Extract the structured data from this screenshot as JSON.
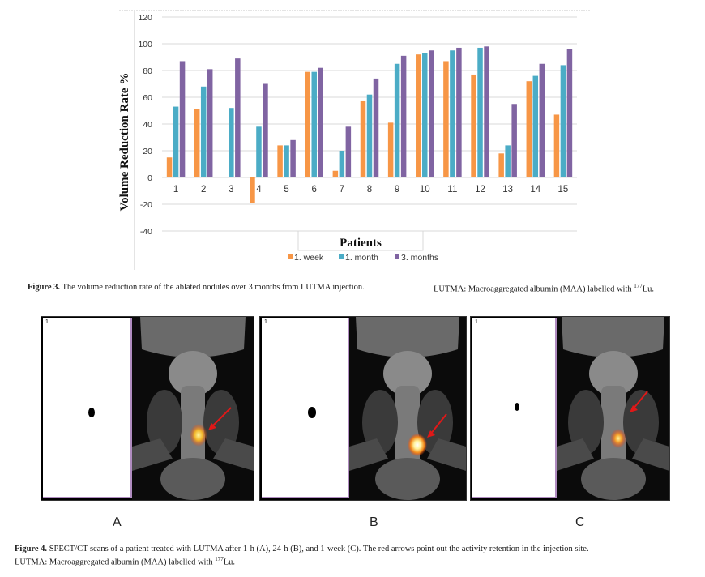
{
  "chart_data": {
    "type": "bar",
    "ylabel": "Volume Reduction Rate %",
    "xlabel": "Patients",
    "categories": [
      "1",
      "2",
      "3",
      "4",
      "5",
      "6",
      "7",
      "8",
      "9",
      "10",
      "11",
      "12",
      "13",
      "14",
      "15"
    ],
    "series": [
      {
        "name": "1. week",
        "color": "#f79646",
        "values": [
          15,
          51,
          0,
          -19,
          24,
          79,
          5,
          57,
          41,
          92,
          87,
          77,
          18,
          72,
          47
        ]
      },
      {
        "name": "1. month",
        "color": "#4bacc6",
        "values": [
          53,
          68,
          52,
          38,
          24,
          79,
          20,
          62,
          85,
          93,
          95,
          97,
          24,
          76,
          84
        ]
      },
      {
        "name": "3. months",
        "color": "#8064a2",
        "values": [
          87,
          81,
          89,
          70,
          28,
          82,
          38,
          74,
          91,
          95,
          97,
          98,
          55,
          85,
          96
        ]
      }
    ],
    "yticks": [
      120,
      100,
      80,
      60,
      40,
      20,
      0,
      -20,
      -40
    ],
    "ylim": [
      -40,
      120
    ],
    "grid": true,
    "legend_position": "bottom"
  },
  "figure3": {
    "label": "Figure 3.",
    "text": "The volume reduction rate of the ablated nodules over 3 months from LUTMA injection.",
    "note": "LUTMA: Macroaggregated albumin (MAA) labelled with",
    "iso_sup": "177",
    "iso": "Lu."
  },
  "figure4": {
    "panels": [
      {
        "letter": "A",
        "num": "1"
      },
      {
        "letter": "B",
        "num": "1"
      },
      {
        "letter": "C",
        "num": "1"
      }
    ],
    "label": "Figure 4.",
    "line1": "SPECT/CT scans of a patient treated with LUTMA after 1-h (A), 24-h (B), and 1-week (C). The red arrows point out the activity retention in the injection site.",
    "line2": "LUTMA: Macroaggregated albumin (MAA) labelled with",
    "iso_sup": "177",
    "iso": "Lu."
  }
}
